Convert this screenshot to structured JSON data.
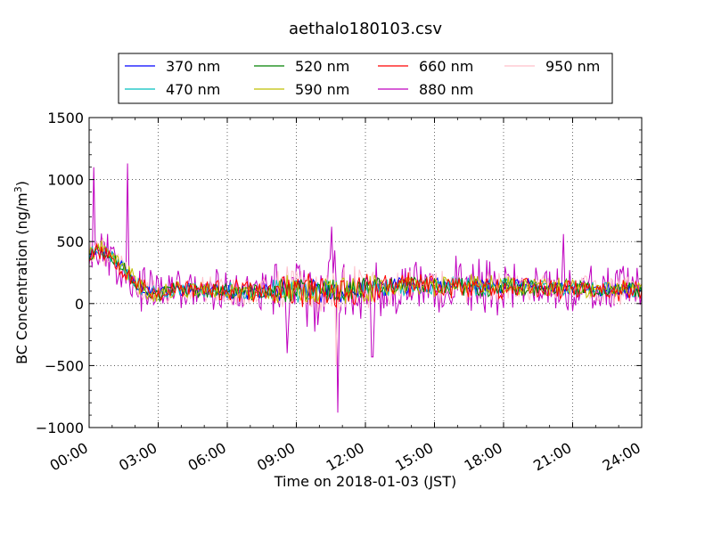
{
  "chart_data": {
    "type": "line",
    "title": "aethalo180103.csv",
    "xlabel": "Time on 2018-01-03 (JST)",
    "ylabel": "BC Concentration (ng/m",
    "ylabel_sup": "3",
    "ylabel_close": ")",
    "xlim_hours": [
      0,
      24
    ],
    "ylim": [
      -1000,
      1500
    ],
    "yticks": [
      -1000,
      -500,
      0,
      500,
      1000,
      1500
    ],
    "ytick_labels": [
      "−1000",
      "−500",
      "0",
      "500",
      "1000",
      "1500"
    ],
    "xticks_hours": [
      0,
      3,
      6,
      9,
      12,
      15,
      18,
      21,
      24
    ],
    "xtick_labels": [
      "00:00",
      "03:00",
      "06:00",
      "09:00",
      "12:00",
      "15:00",
      "18:00",
      "21:00",
      "24:00"
    ],
    "grid": true,
    "legend_position": "top, above plot",
    "series": [
      {
        "name": "370 nm",
        "color": "#0000ff",
        "noise": 45,
        "seed": 11
      },
      {
        "name": "470 nm",
        "color": "#00bfbf",
        "noise": 50,
        "seed": 23
      },
      {
        "name": "520 nm",
        "color": "#008000",
        "noise": 55,
        "seed": 37
      },
      {
        "name": "590 nm",
        "color": "#bfbf00",
        "noise": 60,
        "seed": 41
      },
      {
        "name": "660 nm",
        "color": "#ff0000",
        "noise": 70,
        "seed": 53
      },
      {
        "name": "880 nm",
        "color": "#bf00bf",
        "noise": 150,
        "seed": 67
      },
      {
        "name": "950 nm",
        "color": "#ffc0cb",
        "noise": 95,
        "seed": 79
      }
    ],
    "baseline_profile": {
      "hours": [
        0,
        0.3,
        1.0,
        1.7,
        2.3,
        3.0,
        4.0,
        6.0,
        8.0,
        9.0,
        11.0,
        12.0,
        14.0,
        16.0,
        18.0,
        20.0,
        22.0,
        24.0
      ],
      "values": [
        400,
        450,
        380,
        250,
        120,
        80,
        120,
        100,
        90,
        110,
        100,
        120,
        150,
        140,
        140,
        130,
        110,
        100
      ]
    },
    "spikes_880nm": [
      {
        "hour": 0.2,
        "value": 1100
      },
      {
        "hour": 1.65,
        "value": 1130
      },
      {
        "hour": 10.55,
        "value": 620
      },
      {
        "hour": 10.8,
        "value": -880
      },
      {
        "hour": 8.6,
        "value": -400
      },
      {
        "hour": 20.6,
        "value": 560
      },
      {
        "hour": 12.3,
        "value": -430
      }
    ]
  }
}
